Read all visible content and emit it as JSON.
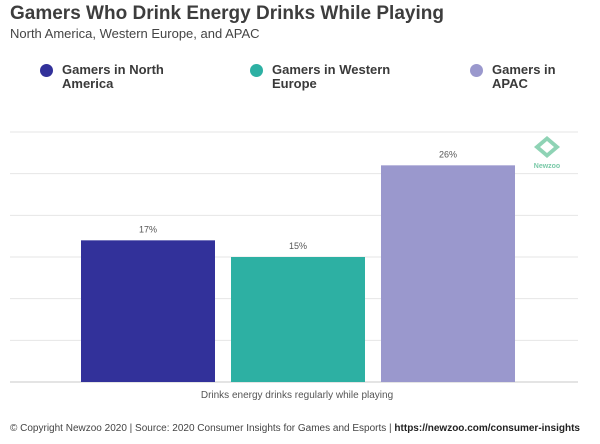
{
  "title": "Gamers Who Drink Energy Drinks While Playing",
  "subtitle": "North America, Western Europe, and APAC",
  "legend": [
    {
      "label": "Gamers in North America",
      "color": "#32319a"
    },
    {
      "label": "Gamers in Western Europe",
      "color": "#2db0a3"
    },
    {
      "label": "Gamers in APAC",
      "color": "#9a98cd"
    }
  ],
  "chart_data": {
    "type": "bar",
    "categories": [
      "Drinks energy drinks regularly while playing"
    ],
    "series": [
      {
        "name": "Gamers in North America",
        "values": [
          17
        ],
        "label": "17%",
        "color": "#32319a"
      },
      {
        "name": "Gamers in Western Europe",
        "values": [
          15
        ],
        "label": "15%",
        "color": "#2db0a3"
      },
      {
        "name": "Gamers in APAC",
        "values": [
          26
        ],
        "label": "26%",
        "color": "#9a98cd"
      }
    ],
    "title": "Gamers Who Drink Energy Drinks While Playing",
    "xlabel": "Drinks energy drinks regularly while playing",
    "ylabel": "",
    "ylim": [
      0,
      30
    ],
    "grid": true,
    "legend_position": "top"
  },
  "watermark": {
    "text": "Newzoo"
  },
  "footer": {
    "text": "© Copyright Newzoo 2020 | Source: 2020 Consumer Insights for Games and Esports |",
    "link": "https://newzoo.com/consumer-insights"
  }
}
